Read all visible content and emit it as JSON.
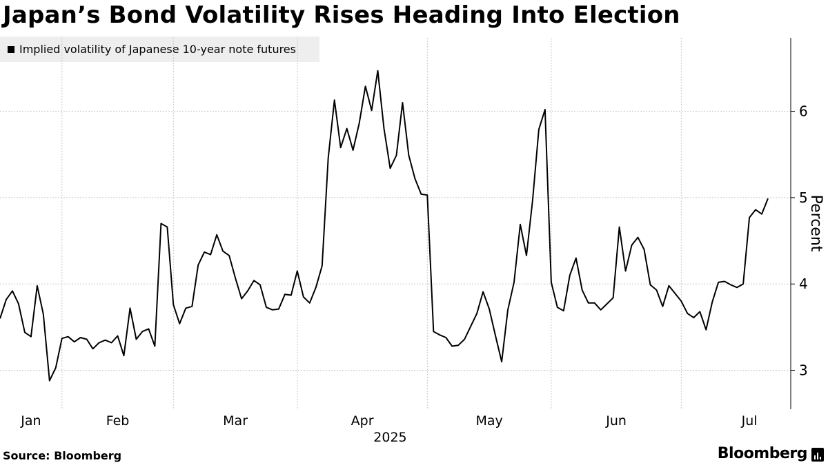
{
  "header": {
    "title": "Japan’s Bond Volatility Rises Heading Into Election"
  },
  "legend": {
    "label": "Implied volatility of Japanese 10-year note futures"
  },
  "footer": {
    "source": "Source: Bloomberg",
    "brand": "Bloomberg"
  },
  "chart_data": {
    "type": "line",
    "title": "Japan’s Bond Volatility Rises Heading Into Election",
    "ylabel": "Percent",
    "year_label": "2025",
    "ylim": [
      2.55,
      6.85
    ],
    "yticks": [
      3,
      4,
      5,
      6
    ],
    "ytick_labels": [
      "3",
      "4",
      "5",
      "6"
    ],
    "xlim": [
      0,
      125
    ],
    "month_ticks": [
      {
        "label": "Jan",
        "at": 5,
        "grid": null
      },
      {
        "label": "Feb",
        "at": 19,
        "grid": 10
      },
      {
        "label": "Mar",
        "at": 38,
        "grid": 28
      },
      {
        "label": "Apr",
        "at": 58.5,
        "grid": 48
      },
      {
        "label": "May",
        "at": 79,
        "grid": 69
      },
      {
        "label": "Jun",
        "at": 99.5,
        "grid": 89
      },
      {
        "label": "Jul",
        "at": 121,
        "grid": 110
      }
    ],
    "grid": true,
    "legend_position": "top-left",
    "series": [
      {
        "name": "Implied volatility of Japanese 10-year note futures",
        "color": "#000000",
        "values": [
          3.6,
          3.82,
          3.92,
          3.77,
          3.44,
          3.39,
          3.98,
          3.65,
          2.88,
          3.03,
          3.37,
          3.39,
          3.33,
          3.38,
          3.36,
          3.25,
          3.32,
          3.35,
          3.32,
          3.4,
          3.17,
          3.72,
          3.36,
          3.45,
          3.48,
          3.28,
          4.7,
          4.66,
          3.76,
          3.54,
          3.72,
          3.74,
          4.22,
          4.37,
          4.34,
          4.57,
          4.38,
          4.33,
          4.07,
          3.83,
          3.92,
          4.04,
          3.99,
          3.73,
          3.7,
          3.71,
          3.88,
          3.87,
          4.15,
          3.85,
          3.78,
          3.96,
          4.21,
          5.46,
          6.13,
          5.58,
          5.8,
          5.55,
          5.86,
          6.29,
          6.01,
          6.47,
          5.8,
          5.34,
          5.49,
          6.1,
          5.49,
          5.22,
          5.04,
          5.03,
          3.45,
          3.41,
          3.38,
          3.28,
          3.29,
          3.36,
          3.51,
          3.66,
          3.91,
          3.71,
          3.4,
          3.1,
          3.7,
          4.02,
          4.69,
          4.33,
          4.97,
          5.79,
          6.02,
          4.02,
          3.73,
          3.69,
          4.1,
          4.3,
          3.93,
          3.78,
          3.78,
          3.7,
          3.77,
          3.84,
          4.66,
          4.15,
          4.45,
          4.54,
          4.4,
          3.99,
          3.93,
          3.74,
          3.98,
          3.89,
          3.8,
          3.66,
          3.61,
          3.68,
          3.47,
          3.79,
          4.02,
          4.03,
          3.99,
          3.96,
          4.0,
          4.77,
          4.86,
          4.81,
          4.99
        ]
      }
    ]
  }
}
